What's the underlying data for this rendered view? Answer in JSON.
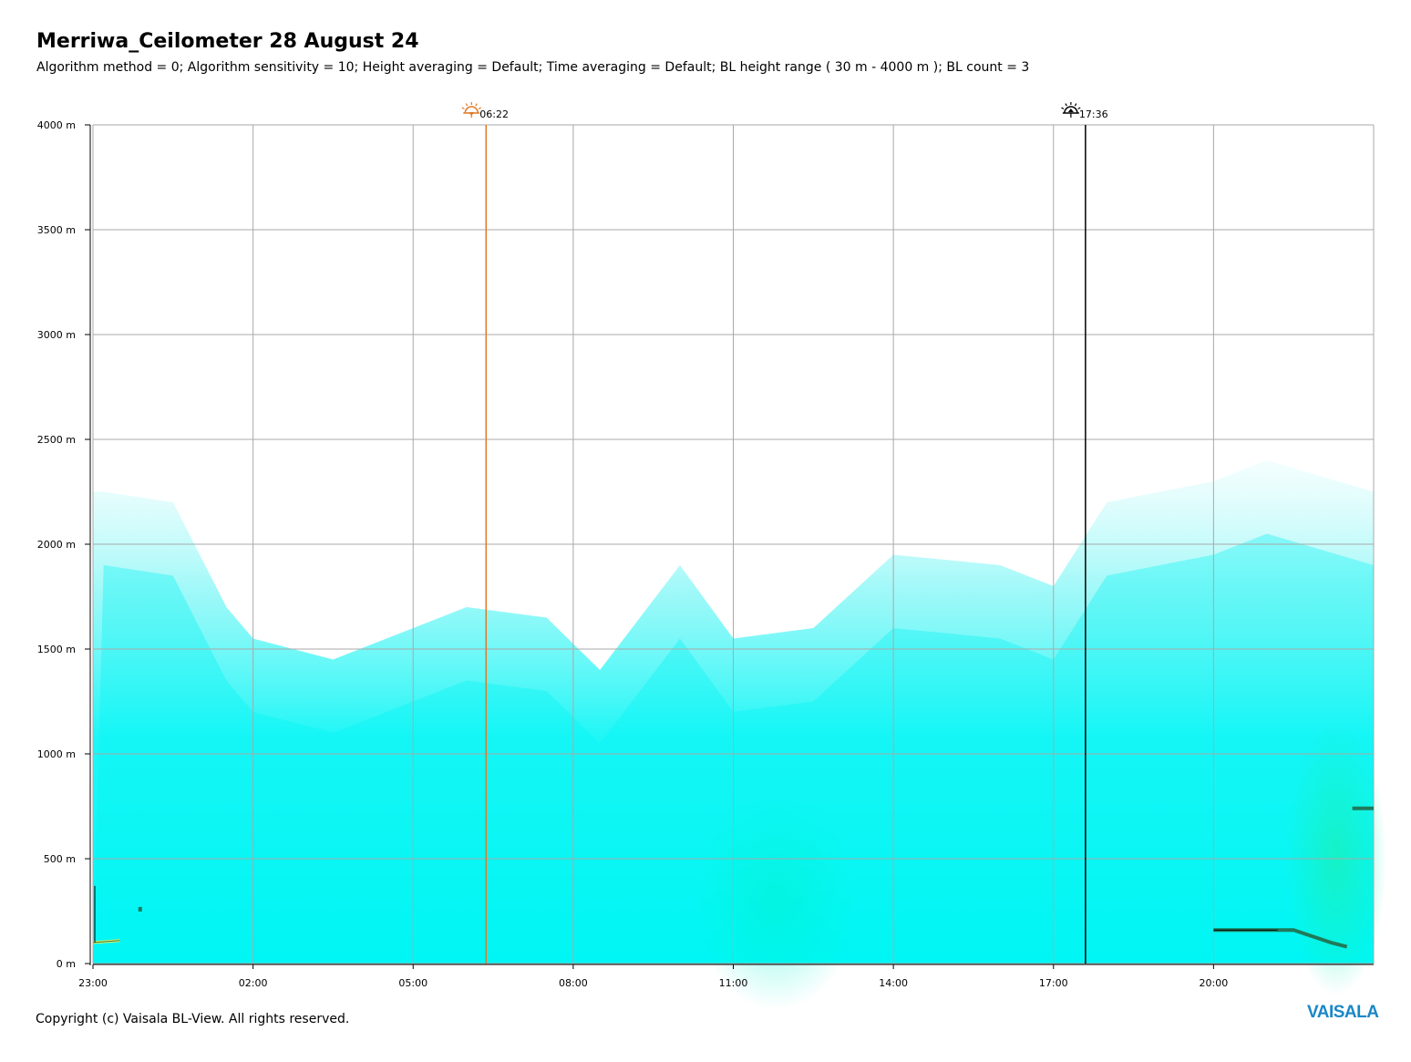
{
  "header": {
    "title": "Merriwa_Ceilometer 28 August 24",
    "subtitle": "Algorithm method = 0; Algorithm sensitivity = 10; Height averaging = Default; Time averaging = Default; BL height range ( 30 m - 4000 m ); BL count = 3"
  },
  "footer": {
    "copyright": "Copyright (c) Vaisala BL-View. All rights reserved.",
    "logo": "VAISALA"
  },
  "colors": {
    "sunrise": "#e07a26",
    "sunset": "#000000",
    "grid": "#a9a9a9",
    "backscatter": "#00ffff",
    "logo": "#1a87c6"
  },
  "chart_data": {
    "type": "heatmap",
    "title": "Merriwa_Ceilometer 28 August 24",
    "x_ticks": [
      "23:00",
      "02:00",
      "05:00",
      "08:00",
      "11:00",
      "14:00",
      "17:00",
      "20:00"
    ],
    "y_ticks": [
      "0 m",
      "500 m",
      "1000 m",
      "1500 m",
      "2000 m",
      "2500 m",
      "3000 m",
      "3500 m",
      "4000 m"
    ],
    "x_range_hours": [
      0,
      24
    ],
    "y_range_m": [
      0,
      4000
    ],
    "grid": true,
    "markers": [
      {
        "name": "sunrise",
        "label": "06:22",
        "hours_from_start": 7.367,
        "icon": "sunrise-icon"
      },
      {
        "name": "sunset",
        "label": "17:36",
        "hours_from_start": 18.6,
        "icon": "sunset-icon"
      }
    ],
    "aerosol_top_m": [
      {
        "t": 0.2,
        "h": 2250
      },
      {
        "t": 1.5,
        "h": 2200
      },
      {
        "t": 2.5,
        "h": 1700
      },
      {
        "t": 3.0,
        "h": 1550
      },
      {
        "t": 4.5,
        "h": 1450
      },
      {
        "t": 6.0,
        "h": 1600
      },
      {
        "t": 7.0,
        "h": 1700
      },
      {
        "t": 8.5,
        "h": 1650
      },
      {
        "t": 9.5,
        "h": 1400
      },
      {
        "t": 11.0,
        "h": 1900
      },
      {
        "t": 12.0,
        "h": 1550
      },
      {
        "t": 13.5,
        "h": 1600
      },
      {
        "t": 15.0,
        "h": 1950
      },
      {
        "t": 17.0,
        "h": 1900
      },
      {
        "t": 18.0,
        "h": 1800
      },
      {
        "t": 19.0,
        "h": 2200
      },
      {
        "t": 21.0,
        "h": 2300
      },
      {
        "t": 22.0,
        "h": 2400
      },
      {
        "t": 24.0,
        "h": 2250
      }
    ],
    "bl_layer_start_m": [
      {
        "t": 0.0,
        "h": 100
      },
      {
        "t": 0.5,
        "h": 110
      },
      {
        "t": 0.85,
        "h": 270
      }
    ],
    "bl_layer_end_m": [
      {
        "t": 21.0,
        "h": 160
      },
      {
        "t": 22.5,
        "h": 160
      },
      {
        "t": 23.2,
        "h": 100
      },
      {
        "t": 23.5,
        "h": 80
      }
    ],
    "bl_layer_end_upper_m": [
      {
        "t": 23.6,
        "h": 740
      },
      {
        "t": 24.0,
        "h": 740
      }
    ]
  }
}
